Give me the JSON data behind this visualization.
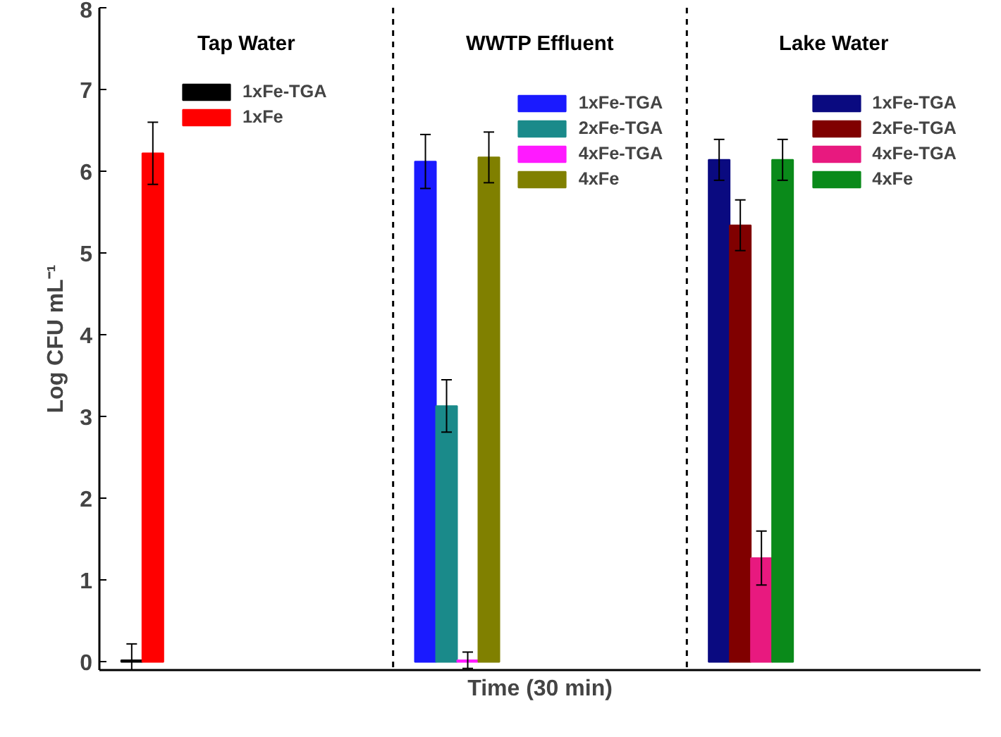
{
  "chart_data": {
    "type": "bar",
    "xlabel": "Time (30 min)",
    "ylabel": "Log CFU mL⁻¹",
    "categories": [
      "Tap Water",
      "WWTP Effluent",
      "Lake Water"
    ],
    "series": [
      {
        "name": "1xFe-TGA",
        "color": "#000000",
        "values": [
          0.02,
          null,
          null
        ],
        "errors": [
          0.2,
          null,
          null
        ]
      },
      {
        "name": "1xFe",
        "color": "#ff0000",
        "values": [
          6.22,
          null,
          null
        ],
        "errors": [
          0.38,
          null,
          null
        ]
      },
      {
        "name": "1xFe-TGA",
        "color": "#1a1aff",
        "values": [
          null,
          6.12,
          null
        ],
        "errors": [
          null,
          0.33,
          null
        ]
      },
      {
        "name": "2xFe-TGA",
        "color": "#1a8a8a",
        "values": [
          null,
          3.13,
          null
        ],
        "errors": [
          null,
          0.32,
          null
        ]
      },
      {
        "name": "4xFe-TGA",
        "color": "#ff1aff",
        "values": [
          null,
          0.02,
          null
        ],
        "errors": [
          null,
          0.1,
          null
        ]
      },
      {
        "name": "4xFe",
        "color": "#808000",
        "values": [
          null,
          6.17,
          null
        ],
        "errors": [
          null,
          0.31,
          null
        ]
      },
      {
        "name": "1xFe-TGA",
        "color": "#0a0a80",
        "values": [
          null,
          null,
          6.14
        ],
        "errors": [
          null,
          null,
          0.25
        ]
      },
      {
        "name": "2xFe-TGA",
        "color": "#800000",
        "values": [
          null,
          null,
          5.34
        ],
        "errors": [
          null,
          null,
          0.31
        ]
      },
      {
        "name": "4xFe-TGA",
        "color": "#e8197f",
        "values": [
          null,
          null,
          1.27
        ],
        "errors": [
          null,
          null,
          0.33
        ]
      },
      {
        "name": "4xFe",
        "color": "#0a8a1a",
        "values": [
          null,
          null,
          6.14
        ],
        "errors": [
          null,
          null,
          0.25
        ]
      }
    ],
    "ylim": [
      -0.1,
      8
    ],
    "yticks": [
      0,
      1,
      2,
      3,
      4,
      5,
      6,
      7,
      8
    ],
    "tick_labels": "y",
    "grid": false,
    "legend": "top"
  }
}
